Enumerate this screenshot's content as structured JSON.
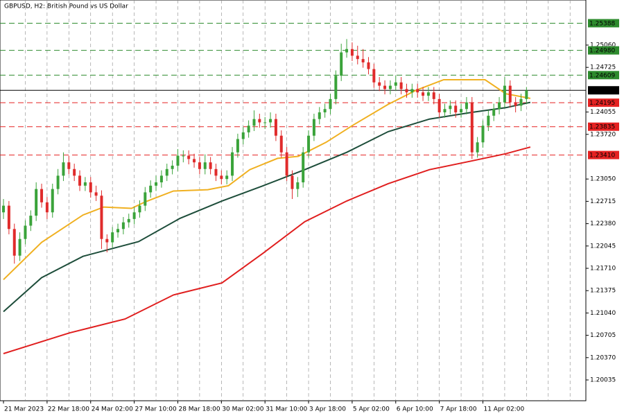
{
  "chart_data": {
    "type": "candlestick",
    "title": "GBPUSD, H2:  British Pound vs US Dollar",
    "ylim": [
      1.19723,
      1.25736
    ],
    "xlim": [
      -0.64,
      106.9
    ],
    "yticks": [
      {
        "value": 1.2506,
        "label": "1.25060"
      },
      1.24725,
      1.24055,
      {
        "value": 1.2372,
        "label": "1.23720"
      },
      {
        "value": 1.2305,
        "label": "1.23050"
      },
      1.22715,
      {
        "value": 1.2238,
        "label": "1.22380"
      },
      1.22045,
      {
        "value": 1.2171,
        "label": "1.21710"
      },
      1.21375,
      {
        "value": 1.2104,
        "label": "1.21040"
      },
      1.20705,
      {
        "value": 1.2037,
        "label": "1.20370"
      },
      1.20035
    ],
    "xticks": [
      {
        "value": 0,
        "label": "21 Mar 2023"
      },
      {
        "value": 8,
        "label": "22 Mar 18:00"
      },
      {
        "value": 16,
        "label": "24 Mar 02:00"
      },
      {
        "value": 24,
        "label": "27 Mar 10:00"
      },
      {
        "value": 32,
        "label": "28 Mar 18:00"
      },
      {
        "value": 40,
        "label": "30 Mar 02:00"
      },
      {
        "value": 48,
        "label": "31 Mar 10:00"
      },
      {
        "value": 56,
        "label": "3 Apr 18:00"
      },
      {
        "value": 64,
        "label": "5 Apr 02:00"
      },
      {
        "value": 72,
        "label": "6 Apr 10:00"
      },
      {
        "value": 80,
        "label": "7 Apr 18:00"
      },
      {
        "value": 88,
        "label": "11 Apr 02:00"
      }
    ],
    "xgrid": [
      4,
      8,
      12,
      16,
      20,
      24,
      28,
      32,
      36,
      40,
      44,
      48,
      52,
      56,
      60,
      64,
      68,
      72,
      76,
      80,
      84,
      88,
      92,
      96,
      100,
      104
    ],
    "up_color": "#3aa33a",
    "down_color": "#e02b2b",
    "levels": [
      {
        "value": 1.25388,
        "color": "#2e8b2e",
        "dashed": true
      },
      {
        "value": 1.2498,
        "label": "1.24980",
        "color": "#2e8b2e",
        "dashed": true
      },
      {
        "value": 1.24609,
        "color": "#2e8b2e",
        "dashed": true
      },
      {
        "value": 1.24381,
        "color": "#000000",
        "dashed": false
      },
      {
        "value": 1.24195,
        "color": "#e52222",
        "dashed": true
      },
      {
        "value": 1.23835,
        "color": "#e52222",
        "dashed": true
      },
      {
        "value": 1.2341,
        "label": "1.23410",
        "color": "#e52222",
        "dashed": true
      }
    ],
    "ohlc": [
      [
        1.2255,
        1.2275,
        1.2245,
        1.2265
      ],
      [
        1.2265,
        1.2272,
        1.2222,
        1.223
      ],
      [
        1.223,
        1.2238,
        1.2178,
        1.219
      ],
      [
        1.219,
        1.2225,
        1.2182,
        1.2215
      ],
      [
        1.2215,
        1.2243,
        1.2207,
        1.2235
      ],
      [
        1.2235,
        1.2258,
        1.2227,
        1.225
      ],
      [
        1.225,
        1.23,
        1.2242,
        1.229
      ],
      [
        1.229,
        1.2298,
        1.2262,
        1.227
      ],
      [
        1.227,
        1.2278,
        1.2245,
        1.2255
      ],
      [
        1.2255,
        1.2298,
        1.2247,
        1.229
      ],
      [
        1.229,
        1.232,
        1.2282,
        1.231
      ],
      [
        1.231,
        1.2345,
        1.2302,
        1.233
      ],
      [
        1.233,
        1.234,
        1.2312,
        1.232
      ],
      [
        1.232,
        1.2328,
        1.2302,
        1.231
      ],
      [
        1.231,
        1.2318,
        1.2287,
        1.2295
      ],
      [
        1.2295,
        1.2308,
        1.2287,
        1.23
      ],
      [
        1.23,
        1.2308,
        1.2277,
        1.2285
      ],
      [
        1.2285,
        1.2295,
        1.2272,
        1.228
      ],
      [
        1.228,
        1.2288,
        1.22,
        1.2215
      ],
      [
        1.2215,
        1.2222,
        1.2195,
        1.221
      ],
      [
        1.221,
        1.2233,
        1.2202,
        1.2225
      ],
      [
        1.2225,
        1.2238,
        1.2217,
        1.223
      ],
      [
        1.223,
        1.2248,
        1.2222,
        1.224
      ],
      [
        1.224,
        1.2253,
        1.2232,
        1.2245
      ],
      [
        1.2245,
        1.2263,
        1.2237,
        1.2255
      ],
      [
        1.2255,
        1.2273,
        1.2247,
        1.2265
      ],
      [
        1.2265,
        1.2293,
        1.2257,
        1.2285
      ],
      [
        1.2285,
        1.2303,
        1.2277,
        1.2295
      ],
      [
        1.2295,
        1.231,
        1.2287,
        1.23
      ],
      [
        1.23,
        1.2318,
        1.2292,
        1.231
      ],
      [
        1.231,
        1.2328,
        1.2302,
        1.232
      ],
      [
        1.232,
        1.2333,
        1.2312,
        1.2325
      ],
      [
        1.2325,
        1.235,
        1.2317,
        1.234
      ],
      [
        1.234,
        1.2348,
        1.233,
        1.234
      ],
      [
        1.234,
        1.2348,
        1.2327,
        1.2335
      ],
      [
        1.2335,
        1.2343,
        1.2322,
        1.233
      ],
      [
        1.233,
        1.2338,
        1.2312,
        1.232
      ],
      [
        1.232,
        1.2342,
        1.2312,
        1.233
      ],
      [
        1.233,
        1.2338,
        1.2312,
        1.232
      ],
      [
        1.232,
        1.2328,
        1.2302,
        1.231
      ],
      [
        1.231,
        1.2318,
        1.2297,
        1.2305
      ],
      [
        1.2305,
        1.2318,
        1.2297,
        1.231
      ],
      [
        1.231,
        1.2353,
        1.2302,
        1.2345
      ],
      [
        1.2345,
        1.2373,
        1.2337,
        1.2365
      ],
      [
        1.2365,
        1.2383,
        1.2357,
        1.2375
      ],
      [
        1.2375,
        1.2393,
        1.2367,
        1.2385
      ],
      [
        1.2385,
        1.2408,
        1.2377,
        1.2395
      ],
      [
        1.2395,
        1.2403,
        1.2382,
        1.239
      ],
      [
        1.239,
        1.2398,
        1.238,
        1.239
      ],
      [
        1.239,
        1.2405,
        1.2382,
        1.2395
      ],
      [
        1.2395,
        1.2403,
        1.2362,
        1.237
      ],
      [
        1.237,
        1.2378,
        1.2337,
        1.2345
      ],
      [
        1.2345,
        1.2353,
        1.2302,
        1.231
      ],
      [
        1.231,
        1.2318,
        1.2275,
        1.229
      ],
      [
        1.229,
        1.2308,
        1.2278,
        1.23
      ],
      [
        1.23,
        1.2353,
        1.2292,
        1.2345
      ],
      [
        1.2345,
        1.2378,
        1.2337,
        1.237
      ],
      [
        1.237,
        1.2403,
        1.2362,
        1.2395
      ],
      [
        1.2395,
        1.2413,
        1.2387,
        1.2405
      ],
      [
        1.2405,
        1.2418,
        1.2397,
        1.241
      ],
      [
        1.241,
        1.2433,
        1.2402,
        1.2425
      ],
      [
        1.2425,
        1.2468,
        1.2417,
        1.246
      ],
      [
        1.246,
        1.2508,
        1.2452,
        1.2495
      ],
      [
        1.2495,
        1.2515,
        1.2487,
        1.25
      ],
      [
        1.25,
        1.251,
        1.2482,
        1.249
      ],
      [
        1.249,
        1.2505,
        1.2477,
        1.2485
      ],
      [
        1.2485,
        1.25,
        1.2472,
        1.248
      ],
      [
        1.248,
        1.2488,
        1.2462,
        1.247
      ],
      [
        1.247,
        1.2478,
        1.2442,
        1.245
      ],
      [
        1.245,
        1.2458,
        1.2437,
        1.2445
      ],
      [
        1.2445,
        1.2453,
        1.2432,
        1.244
      ],
      [
        1.244,
        1.2453,
        1.2432,
        1.2445
      ],
      [
        1.2445,
        1.246,
        1.2437,
        1.245
      ],
      [
        1.245,
        1.2458,
        1.2432,
        1.244
      ],
      [
        1.244,
        1.2448,
        1.2427,
        1.2435
      ],
      [
        1.2435,
        1.2448,
        1.2427,
        1.244
      ],
      [
        1.244,
        1.2448,
        1.2427,
        1.2435
      ],
      [
        1.2435,
        1.2443,
        1.2422,
        1.243
      ],
      [
        1.243,
        1.2443,
        1.2422,
        1.2435
      ],
      [
        1.2435,
        1.2443,
        1.2417,
        1.2425
      ],
      [
        1.2425,
        1.2433,
        1.2397,
        1.2405
      ],
      [
        1.2405,
        1.2418,
        1.2397,
        1.241
      ],
      [
        1.241,
        1.2423,
        1.2402,
        1.2415
      ],
      [
        1.2415,
        1.2423,
        1.2397,
        1.2405
      ],
      [
        1.2405,
        1.2418,
        1.2397,
        1.241
      ],
      [
        1.241,
        1.2428,
        1.2402,
        1.242
      ],
      [
        1.242,
        1.2428,
        1.2335,
        1.2345
      ],
      [
        1.2345,
        1.2368,
        1.2337,
        1.236
      ],
      [
        1.236,
        1.2393,
        1.2352,
        1.2385
      ],
      [
        1.2385,
        1.2408,
        1.2377,
        1.24
      ],
      [
        1.24,
        1.2418,
        1.2392,
        1.241
      ],
      [
        1.241,
        1.2428,
        1.2402,
        1.242
      ],
      [
        1.242,
        1.2458,
        1.2412,
        1.2445
      ],
      [
        1.2445,
        1.2453,
        1.2412,
        1.242
      ],
      [
        1.242,
        1.2428,
        1.2405,
        1.2415
      ],
      [
        1.2415,
        1.2433,
        1.2407,
        1.2425
      ],
      [
        1.2425,
        1.2443,
        1.2417,
        1.24381
      ]
    ],
    "series": [
      {
        "color": "#f0b020",
        "x": [
          0,
          7,
          14.6,
          18.4,
          23.5,
          26.1,
          31.2,
          37.5,
          41.3,
          45.2,
          50.3,
          54.1,
          59.2,
          64.2,
          70.6,
          75.7,
          80.8,
          88.4,
          92.2,
          96.7
        ],
        "values": [
          1.2154,
          1.221,
          1.2251,
          1.2263,
          1.2261,
          1.2271,
          1.2287,
          1.2289,
          1.2295,
          1.2319,
          1.2336,
          1.2339,
          1.236,
          1.2386,
          1.2417,
          1.2438,
          1.2454,
          1.2454,
          1.2433,
          1.2426
        ]
      },
      {
        "color": "#1d4d3a",
        "x": [
          0,
          7,
          14.6,
          24.8,
          32.4,
          40.1,
          47.7,
          55.3,
          63,
          70.6,
          78.2,
          85.9,
          92.2,
          96.7
        ],
        "values": [
          1.2106,
          1.2157,
          1.2189,
          1.2211,
          1.2246,
          1.2272,
          1.2295,
          1.2319,
          1.2345,
          1.2376,
          1.2395,
          1.2405,
          1.2412,
          1.242
        ]
      },
      {
        "color": "#e01e1e",
        "x": [
          0,
          12.1,
          22.3,
          31.2,
          40.1,
          47.7,
          55.3,
          63,
          70.6,
          78.2,
          85.9,
          92.2,
          96.7
        ],
        "values": [
          1.2043,
          1.2074,
          1.2095,
          1.2131,
          1.2149,
          1.2194,
          1.2241,
          1.2272,
          1.2298,
          1.2319,
          1.2332,
          1.2343,
          1.2353
        ]
      }
    ]
  }
}
